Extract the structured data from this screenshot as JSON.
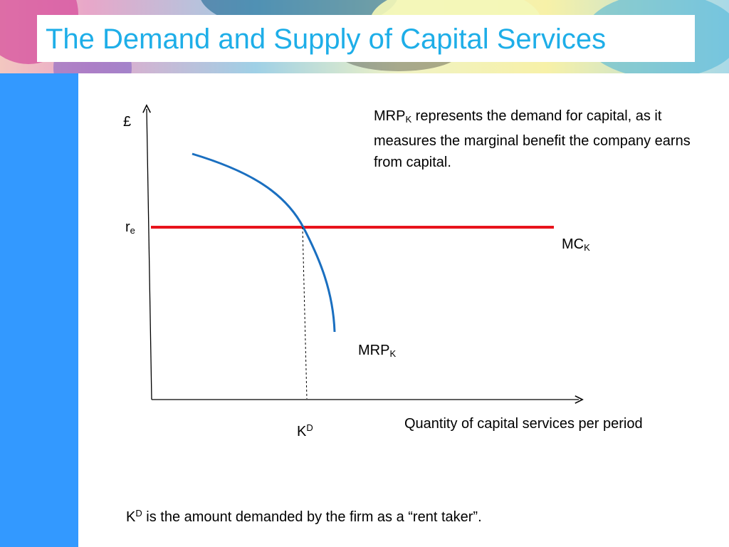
{
  "slide": {
    "title": "The Demand and Supply of Capital Services"
  },
  "diagram": {
    "y_axis_label": "£",
    "re_label": {
      "main": "r",
      "sub": "e"
    },
    "mc_label": {
      "main": "MC",
      "sub": "K"
    },
    "mrp_label": {
      "main": "MRP",
      "sub": "K"
    },
    "kd_label": {
      "main": "K",
      "sup": "D"
    },
    "x_axis_label": "Quantity of capital services per period",
    "explanation": {
      "main": "MRP",
      "sub": "K",
      "rest": " represents the demand for capital, as it measures the marginal benefit the company earns from capital."
    },
    "footnote": {
      "main": "K",
      "sup": "D",
      "rest": " is the amount demanded by the firm as a “rent taker”."
    }
  },
  "colors": {
    "title": "#1eaee8",
    "side_bar": "#3399ff",
    "demand_curve": "#1a6fc0",
    "supply_line": "#e8141c",
    "axes": "#000000"
  }
}
